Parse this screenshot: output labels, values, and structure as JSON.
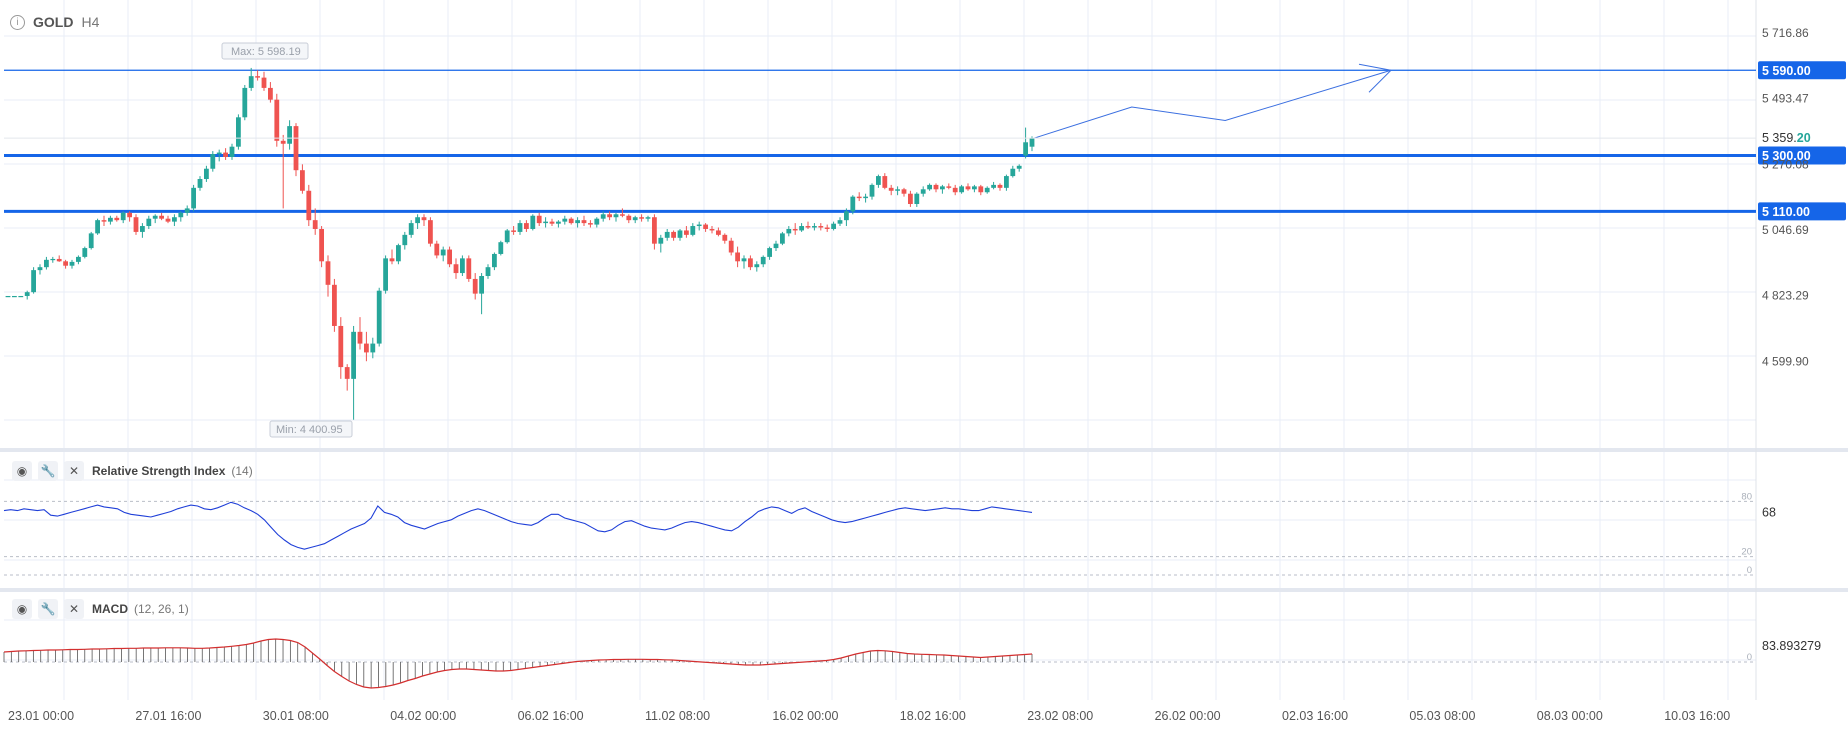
{
  "header": {
    "symbol": "GOLD",
    "timeframe": "H4"
  },
  "colors": {
    "up": "#26a69a",
    "down": "#ef5350",
    "level": "#1565e8",
    "rsi": "#1f3fd8",
    "macd_line": "#d32f2f",
    "grid": "#e8edf7"
  },
  "chart_data": [
    {
      "type": "candlestick",
      "x_ticks": [
        "23.01 00:00",
        "27.01 16:00",
        "30.01 08:00",
        "04.02 00:00",
        "06.02 16:00",
        "11.02 08:00",
        "16.02 00:00",
        "18.02 16:00",
        "23.02 08:00",
        "26.02 00:00",
        "02.03 16:00",
        "05.03 08:00",
        "08.03 00:00",
        "10.03 16:00"
      ],
      "y_ticks": [
        "5 716.86",
        "5 493.47",
        "5 270.08",
        "5 046.69",
        "4 823.29",
        "4 599.90"
      ],
      "y_range": [
        4380,
        5770
      ],
      "max_label": "Max: 5 598.19",
      "min_label": "Min: 4 400.95",
      "levels": [
        {
          "value": 5590,
          "label": "5 590.00"
        },
        {
          "value": 5300,
          "label": "5 300.00"
        },
        {
          "value": 5110,
          "label": "5 110.00"
        }
      ],
      "last_price": {
        "main": "5 359.",
        "fraction": "20",
        "value": 5359.2
      },
      "projection": [
        [
          0,
          5359
        ],
        [
          23,
          5465
        ],
        [
          45,
          5419
        ],
        [
          84,
          5590
        ]
      ],
      "arrow_tip": [
        84,
        5590
      ],
      "candles": [
        [
          4822,
          4822,
          4822,
          4822
        ],
        [
          4822,
          4822,
          4822,
          4822
        ],
        [
          4822,
          4822,
          4822,
          4822
        ],
        [
          4822,
          4840,
          4810,
          4835
        ],
        [
          4835,
          4920,
          4830,
          4910
        ],
        [
          4910,
          4930,
          4895,
          4920
        ],
        [
          4920,
          4955,
          4912,
          4945
        ],
        [
          4945,
          4955,
          4935,
          4948
        ],
        [
          4948,
          4960,
          4938,
          4940
        ],
        [
          4940,
          4945,
          4915,
          4925
        ],
        [
          4925,
          4945,
          4915,
          4938
        ],
        [
          4938,
          4960,
          4930,
          4955
        ],
        [
          4955,
          4990,
          4950,
          4985
        ],
        [
          4985,
          5040,
          4980,
          5035
        ],
        [
          5035,
          5085,
          5030,
          5080
        ],
        [
          5080,
          5095,
          5060,
          5075
        ],
        [
          5075,
          5095,
          5065,
          5088
        ],
        [
          5088,
          5095,
          5075,
          5080
        ],
        [
          5080,
          5110,
          5070,
          5105
        ],
        [
          5105,
          5110,
          5075,
          5090
        ],
        [
          5090,
          5100,
          5030,
          5040
        ],
        [
          5040,
          5070,
          5020,
          5060
        ],
        [
          5060,
          5095,
          5050,
          5085
        ],
        [
          5085,
          5100,
          5070,
          5095
        ],
        [
          5095,
          5105,
          5080,
          5085
        ],
        [
          5085,
          5095,
          5070,
          5075
        ],
        [
          5075,
          5100,
          5060,
          5090
        ],
        [
          5090,
          5110,
          5075,
          5105
        ],
        [
          5105,
          5130,
          5095,
          5120
        ],
        [
          5120,
          5200,
          5110,
          5190
        ],
        [
          5190,
          5230,
          5180,
          5220
        ],
        [
          5220,
          5265,
          5210,
          5255
        ],
        [
          5255,
          5315,
          5245,
          5305
        ],
        [
          5305,
          5320,
          5280,
          5310
        ],
        [
          5310,
          5325,
          5285,
          5295
        ],
        [
          5295,
          5340,
          5285,
          5330
        ],
        [
          5330,
          5440,
          5320,
          5430
        ],
        [
          5430,
          5540,
          5420,
          5530
        ],
        [
          5530,
          5598,
          5520,
          5570
        ],
        [
          5570,
          5590,
          5555,
          5565
        ],
        [
          5565,
          5585,
          5520,
          5530
        ],
        [
          5530,
          5550,
          5480,
          5490
        ],
        [
          5490,
          5510,
          5330,
          5350
        ],
        [
          5350,
          5370,
          5120,
          5340
        ],
        [
          5340,
          5420,
          5320,
          5400
        ],
        [
          5400,
          5410,
          5230,
          5250
        ],
        [
          5250,
          5270,
          5170,
          5180
        ],
        [
          5180,
          5200,
          5060,
          5080
        ],
        [
          5080,
          5120,
          5030,
          5050
        ],
        [
          5050,
          5060,
          4920,
          4940
        ],
        [
          4940,
          4960,
          4820,
          4860
        ],
        [
          4860,
          4880,
          4700,
          4720
        ],
        [
          4720,
          4750,
          4540,
          4580
        ],
        [
          4580,
          4590,
          4500,
          4540
        ],
        [
          4540,
          4720,
          4401,
          4700
        ],
        [
          4700,
          4750,
          4640,
          4660
        ],
        [
          4660,
          4700,
          4600,
          4630
        ],
        [
          4630,
          4680,
          4610,
          4660
        ],
        [
          4660,
          4850,
          4650,
          4840
        ],
        [
          4840,
          4960,
          4830,
          4950
        ],
        [
          4950,
          4980,
          4930,
          4940
        ],
        [
          4940,
          5000,
          4930,
          4995
        ],
        [
          4995,
          5040,
          4980,
          5030
        ],
        [
          5030,
          5080,
          5020,
          5070
        ],
        [
          5070,
          5100,
          5050,
          5090
        ],
        [
          5090,
          5100,
          5060,
          5080
        ],
        [
          5080,
          5090,
          4990,
          5000
        ],
        [
          5000,
          5010,
          4950,
          4960
        ],
        [
          4960,
          4990,
          4940,
          4980
        ],
        [
          4980,
          4990,
          4920,
          4930
        ],
        [
          4930,
          4950,
          4880,
          4900
        ],
        [
          4900,
          4960,
          4890,
          4950
        ],
        [
          4950,
          4960,
          4870,
          4880
        ],
        [
          4880,
          4900,
          4810,
          4830
        ],
        [
          4830,
          4900,
          4760,
          4890
        ],
        [
          4890,
          4930,
          4880,
          4920
        ],
        [
          4920,
          4970,
          4910,
          4965
        ],
        [
          4965,
          5010,
          4960,
          5005
        ],
        [
          5005,
          5050,
          5000,
          5045
        ],
        [
          5045,
          5060,
          5030,
          5040
        ],
        [
          5040,
          5080,
          5030,
          5070
        ],
        [
          5070,
          5080,
          5040,
          5050
        ],
        [
          5050,
          5100,
          5045,
          5095
        ],
        [
          5095,
          5105,
          5060,
          5070
        ],
        [
          5070,
          5090,
          5055,
          5075
        ],
        [
          5075,
          5085,
          5060,
          5068
        ],
        [
          5068,
          5080,
          5055,
          5075
        ],
        [
          5075,
          5095,
          5065,
          5085
        ],
        [
          5085,
          5090,
          5065,
          5070
        ],
        [
          5070,
          5090,
          5055,
          5080
        ],
        [
          5080,
          5095,
          5060,
          5070
        ],
        [
          5070,
          5080,
          5055,
          5065
        ],
        [
          5065,
          5090,
          5055,
          5085
        ],
        [
          5085,
          5110,
          5075,
          5100
        ],
        [
          5100,
          5110,
          5080,
          5090
        ],
        [
          5090,
          5105,
          5075,
          5100
        ],
        [
          5100,
          5120,
          5090,
          5095
        ],
        [
          5095,
          5100,
          5070,
          5080
        ],
        [
          5080,
          5095,
          5070,
          5090
        ],
        [
          5090,
          5100,
          5075,
          5085
        ],
        [
          5085,
          5095,
          5075,
          5090
        ],
        [
          5090,
          5100,
          4980,
          5000
        ],
        [
          5000,
          5030,
          4970,
          5020
        ],
        [
          5020,
          5050,
          5010,
          5040
        ],
        [
          5040,
          5045,
          5010,
          5020
        ],
        [
          5020,
          5050,
          5010,
          5045
        ],
        [
          5045,
          5060,
          5020,
          5030
        ],
        [
          5030,
          5070,
          5025,
          5060
        ],
        [
          5060,
          5075,
          5045,
          5065
        ],
        [
          5065,
          5070,
          5040,
          5050
        ],
        [
          5050,
          5060,
          5035,
          5045
        ],
        [
          5045,
          5055,
          5025,
          5030
        ],
        [
          5030,
          5035,
          5000,
          5010
        ],
        [
          5010,
          5020,
          4960,
          4970
        ],
        [
          4970,
          4990,
          4920,
          4940
        ],
        [
          4940,
          4960,
          4915,
          4950
        ],
        [
          4950,
          4960,
          4910,
          4920
        ],
        [
          4920,
          4940,
          4905,
          4930
        ],
        [
          4930,
          4960,
          4920,
          4955
        ],
        [
          4955,
          4990,
          4945,
          4985
        ],
        [
          4985,
          5010,
          4975,
          5000
        ],
        [
          5000,
          5040,
          4995,
          5035
        ],
        [
          5035,
          5060,
          5025,
          5050
        ],
        [
          5050,
          5070,
          5030,
          5045
        ],
        [
          5045,
          5070,
          5040,
          5060
        ],
        [
          5060,
          5075,
          5050,
          5055
        ],
        [
          5055,
          5070,
          5045,
          5060
        ],
        [
          5060,
          5070,
          5045,
          5055
        ],
        [
          5055,
          5065,
          5040,
          5050
        ],
        [
          5050,
          5075,
          5045,
          5068
        ],
        [
          5068,
          5090,
          5060,
          5080
        ],
        [
          5080,
          5120,
          5060,
          5110
        ],
        [
          5110,
          5165,
          5100,
          5160
        ],
        [
          5160,
          5175,
          5145,
          5155
        ],
        [
          5155,
          5170,
          5140,
          5160
        ],
        [
          5160,
          5205,
          5150,
          5200
        ],
        [
          5200,
          5235,
          5190,
          5230
        ],
        [
          5230,
          5240,
          5185,
          5190
        ],
        [
          5190,
          5200,
          5165,
          5180
        ],
        [
          5180,
          5195,
          5165,
          5185
        ],
        [
          5185,
          5190,
          5160,
          5170
        ],
        [
          5170,
          5180,
          5125,
          5135
        ],
        [
          5135,
          5175,
          5125,
          5170
        ],
        [
          5170,
          5195,
          5160,
          5185
        ],
        [
          5185,
          5205,
          5180,
          5200
        ],
        [
          5200,
          5205,
          5175,
          5185
        ],
        [
          5185,
          5200,
          5170,
          5195
        ],
        [
          5195,
          5205,
          5185,
          5190
        ],
        [
          5190,
          5200,
          5165,
          5175
        ],
        [
          5175,
          5200,
          5170,
          5195
        ],
        [
          5195,
          5205,
          5180,
          5185
        ],
        [
          5185,
          5200,
          5175,
          5195
        ],
        [
          5195,
          5200,
          5165,
          5175
        ],
        [
          5175,
          5195,
          5170,
          5190
        ],
        [
          5190,
          5210,
          5185,
          5200
        ],
        [
          5200,
          5205,
          5180,
          5190
        ],
        [
          5190,
          5235,
          5180,
          5230
        ],
        [
          5230,
          5265,
          5225,
          5255
        ],
        [
          5255,
          5270,
          5245,
          5265
        ],
        [
          5300,
          5395,
          5290,
          5345
        ],
        [
          5330,
          5365,
          5315,
          5359
        ]
      ],
      "step": 6.4
    },
    {
      "type": "line",
      "title": "Relative Strength Index",
      "params": "(14)",
      "y_range": [
        0,
        100
      ],
      "levels": [
        {
          "value": 80,
          "label": "80"
        },
        {
          "value": 20,
          "label": "20"
        },
        {
          "value": 0,
          "label": "0"
        }
      ],
      "last_value_label": "68",
      "values": [
        70,
        71,
        70,
        72,
        71,
        70,
        71,
        65,
        64,
        66,
        68,
        70,
        72,
        74,
        76,
        74,
        73,
        72,
        68,
        66,
        65,
        64,
        63,
        65,
        67,
        69,
        72,
        74,
        76,
        75,
        72,
        71,
        73,
        76,
        79,
        77,
        73,
        70,
        66,
        60,
        52,
        44,
        38,
        33,
        30,
        28,
        30,
        32,
        34,
        38,
        42,
        46,
        50,
        53,
        56,
        62,
        75,
        68,
        66,
        63,
        57,
        54,
        52,
        50,
        53,
        56,
        58,
        60,
        64,
        67,
        70,
        72,
        70,
        67,
        64,
        61,
        58,
        56,
        55,
        54,
        57,
        62,
        66,
        66,
        62,
        60,
        58,
        56,
        52,
        48,
        47,
        49,
        54,
        58,
        59,
        56,
        53,
        51,
        50,
        49,
        51,
        54,
        57,
        58,
        57,
        55,
        53,
        51,
        49,
        48,
        52,
        58,
        63,
        69,
        72,
        74,
        73,
        70,
        67,
        71,
        73,
        69,
        66,
        63,
        60,
        58,
        57,
        58,
        60,
        62,
        64,
        66,
        68,
        70,
        72,
        73,
        72,
        71,
        70,
        71,
        72,
        73,
        72,
        72,
        71,
        70,
        70,
        72,
        74,
        73,
        72,
        71,
        70,
        69,
        68
      ]
    },
    {
      "type": "bar",
      "title": "MACD",
      "params": "(12, 26, 1)",
      "y_range": [
        -220,
        110
      ],
      "zero_label": "0",
      "last_value_label": "83.893279",
      "histogram": [
        40,
        42,
        44,
        45,
        46,
        47,
        48,
        48,
        49,
        50,
        50,
        51,
        52,
        52,
        53,
        54,
        54,
        55,
        55,
        56,
        56,
        56,
        57,
        57,
        57,
        56,
        55,
        55,
        56,
        58,
        60,
        63,
        66,
        70,
        76,
        84,
        90,
        92,
        90,
        86,
        78,
        60,
        36,
        12,
        -14,
        -38,
        -58,
        -76,
        -90,
        -100,
        -104,
        -102,
        -98,
        -92,
        -84,
        -74,
        -66,
        -56,
        -48,
        -40,
        -34,
        -30,
        -28,
        -28,
        -30,
        -32,
        -34,
        -36,
        -36,
        -34,
        -30,
        -26,
        -22,
        -18,
        -14,
        -10,
        -6,
        -2,
        2,
        4,
        6,
        8,
        9,
        10,
        10,
        11,
        11,
        11,
        10,
        10,
        9,
        8,
        6,
        4,
        2,
        0,
        -2,
        -4,
        -6,
        -8,
        -10,
        -12,
        -12,
        -12,
        -10,
        -8,
        -6,
        -4,
        -2,
        0,
        2,
        4,
        6,
        10,
        16,
        24,
        32,
        38,
        44,
        46,
        45,
        42,
        38,
        34,
        32,
        31,
        30,
        29,
        28,
        26,
        24,
        22,
        20,
        18,
        20,
        22,
        24,
        26,
        28,
        30,
        32
      ]
    }
  ]
}
